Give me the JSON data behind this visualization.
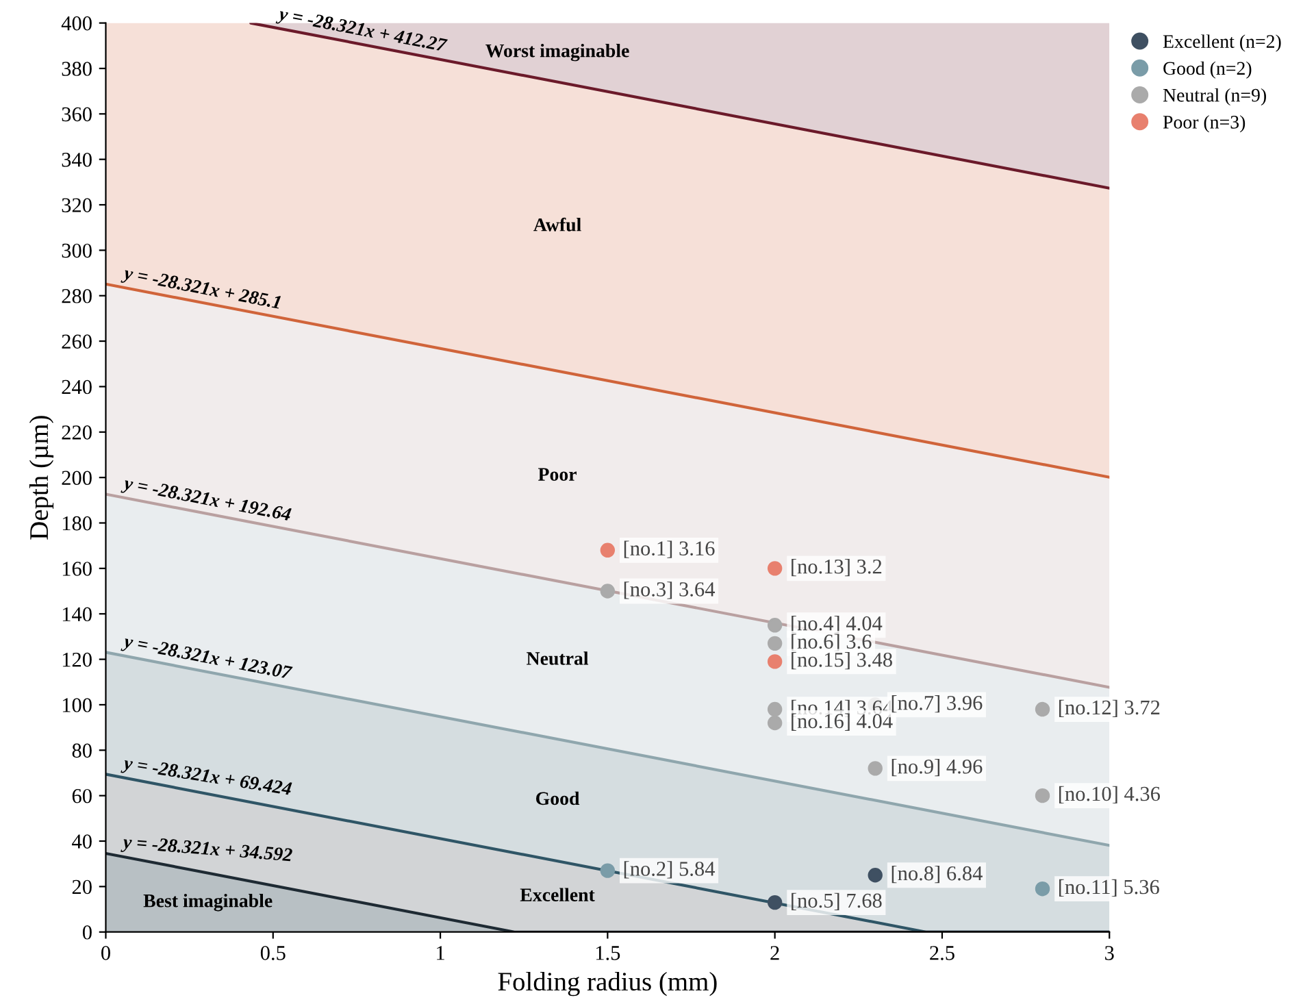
{
  "chart_data": {
    "type": "scatter",
    "xlabel": "Folding radius (mm)",
    "ylabel": "Depth (µm)",
    "xlim": [
      0,
      3
    ],
    "ylim": [
      0,
      400
    ],
    "xticks": [
      0,
      0.5,
      1,
      1.5,
      2,
      2.5,
      3
    ],
    "yticks": [
      0,
      20,
      40,
      60,
      80,
      100,
      120,
      140,
      160,
      180,
      200,
      220,
      240,
      260,
      280,
      300,
      320,
      340,
      360,
      380,
      400
    ],
    "grid": false,
    "legend": "top right",
    "marker": "circle",
    "series": [
      {
        "type": "line",
        "name": "y = -28.321x + 412.27",
        "color": "#6b1a2a",
        "marker": "none",
        "x": [
          0.4333,
          3
        ],
        "values": [
          400,
          327.31
        ],
        "lower": [
          400,
          327.31
        ],
        "upper": [
          400,
          400
        ]
      },
      {
        "type": "line",
        "name": "y = -28.321x + 285.1",
        "color": "#d0643a",
        "marker": "none",
        "x": [
          0,
          0.4333,
          3
        ],
        "values": [
          285.1,
          272.83,
          200.14
        ],
        "lower": [
          285.1,
          272.83,
          200.14
        ],
        "upper": [
          400,
          400,
          327.31
        ]
      },
      {
        "type": "line",
        "name": "y = -28.321x + 192.64",
        "color": "#b9a0a0",
        "marker": "none",
        "x": [
          0,
          3
        ],
        "values": [
          192.64,
          107.68
        ],
        "lower": [
          192.64,
          107.68
        ],
        "upper": [
          285.1,
          200.14
        ]
      },
      {
        "type": "line",
        "name": "y = -28.321x + 123.07",
        "color": "#8fa6ad",
        "marker": "none",
        "x": [
          0,
          3
        ],
        "values": [
          123.07,
          38.11
        ],
        "lower": [
          123.07,
          38.11
        ],
        "upper": [
          192.64,
          107.68
        ]
      },
      {
        "type": "line",
        "name": "y = -28.321x + 69.424",
        "color": "#2f5566",
        "marker": "none",
        "x": [
          0,
          2.4513,
          3
        ],
        "values": [
          69.424,
          0,
          0
        ],
        "lower": [
          69.424,
          0,
          0
        ],
        "upper": [
          123.07,
          53.65,
          38.11
        ]
      },
      {
        "type": "line",
        "name": "y = -28.321x + 34.592",
        "color": "#1e2a33",
        "marker": "none",
        "x": [
          0,
          1.2214,
          2.4513,
          3
        ],
        "values": [
          34.592,
          0,
          0,
          0
        ],
        "lower": [
          34.592,
          0,
          0,
          0
        ],
        "upper": [
          69.424,
          34.83,
          0,
          0
        ]
      },
      {
        "type": "area",
        "color": "#b8c0c4",
        "marker": "none",
        "x": [
          0,
          1.2214
        ],
        "values": [
          34.592,
          0
        ]
      },
      {
        "name": "Excellent (n=2)",
        "color": "#3f5062",
        "x": [
          2.3,
          2
        ],
        "values": [
          25,
          13
        ],
        "value_labels": [
          "[no.8] 6.84",
          "[no.5] 7.68"
        ]
      },
      {
        "name": "Good (n=2)",
        "color": "#7a9ca8",
        "x": [
          1.5,
          2.8
        ],
        "values": [
          27,
          19
        ],
        "value_labels": [
          "[no.2] 5.84",
          "[no.11] 5.36"
        ]
      },
      {
        "name": "Neutral (n=9)",
        "color": "#aaaaaa",
        "x": [
          1.5,
          2,
          2,
          2,
          2,
          2.3,
          2.8,
          2.3,
          2.8
        ],
        "values": [
          150,
          135,
          127,
          98,
          92,
          100,
          98,
          72,
          60
        ],
        "value_labels": [
          "[no.3] 3.64",
          "[no.4] 4.04",
          "[no.6] 3.6",
          "[no.14] 3.64",
          "[no.16] 4.04",
          "[no.7] 3.96",
          "[no.12] 3.72",
          "[no.9] 4.96",
          "[no.10] 4.36"
        ]
      },
      {
        "name": "Poor (n=3)",
        "color": "#e8806e",
        "x": [
          1.5,
          2,
          2
        ],
        "values": [
          168,
          160,
          119
        ],
        "value_labels": [
          "[no.1] 3.16",
          "[no.13] 3.2",
          "[no.15] 3.48"
        ]
      }
    ],
    "annotations": [
      "Worst imaginable",
      "Awful",
      "Poor",
      "Neutral",
      "Good",
      "Excellent",
      "Best imaginable"
    ]
  }
}
